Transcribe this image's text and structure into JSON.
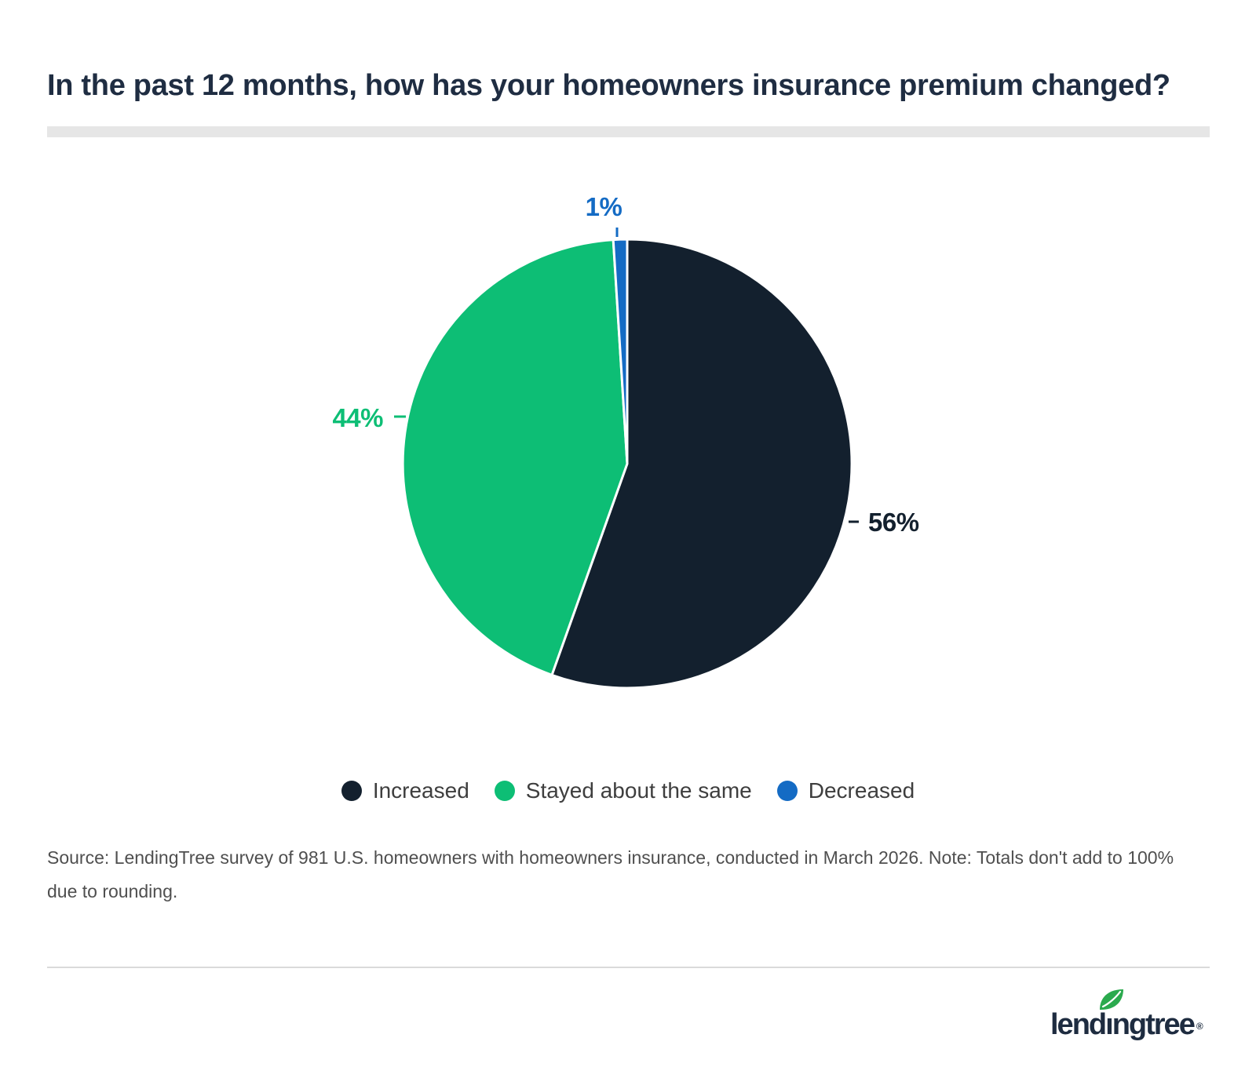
{
  "header": {
    "title": "In the past 12 months, how has your homeowners insurance premium changed?"
  },
  "chart_data": {
    "type": "pie",
    "title": "In the past 12 months, how has your homeowners insurance premium changed?",
    "start_angle_deg": 0,
    "direction": "clockwise",
    "legend_position": "bottom",
    "values_are_percent": true,
    "slices": [
      {
        "name": "Increased",
        "value": 56,
        "label": "56%",
        "color": "#13202e"
      },
      {
        "name": "Stayed about the same",
        "value": 44,
        "label": "44%",
        "color": "#0dbe75"
      },
      {
        "name": "Decreased",
        "value": 1,
        "label": "1%",
        "color": "#146bc4"
      }
    ]
  },
  "footer": {
    "source_line1": "Source: LendingTree survey of 981 U.S. homeowners with homeowners insurance, conducted in March 2026. Note: Totals don't add to 100%",
    "source_line2": "due to rounding.",
    "logo": {
      "brand": "lendingtree",
      "registered": "®",
      "parts": {
        "left": "lend",
        "i": "ı",
        "right": "ngtree"
      }
    }
  },
  "colors": {
    "background": "#ffffff",
    "title_text": "#1f2d42",
    "title_rule": "#e6e6e6",
    "legend_text": "#3e3e3e",
    "source_text": "#4f4f4f",
    "divider": "#dadada",
    "logo_text": "#1e2c40",
    "logo_leaf": "#2baa4e",
    "slice_border": "#ffffff"
  }
}
